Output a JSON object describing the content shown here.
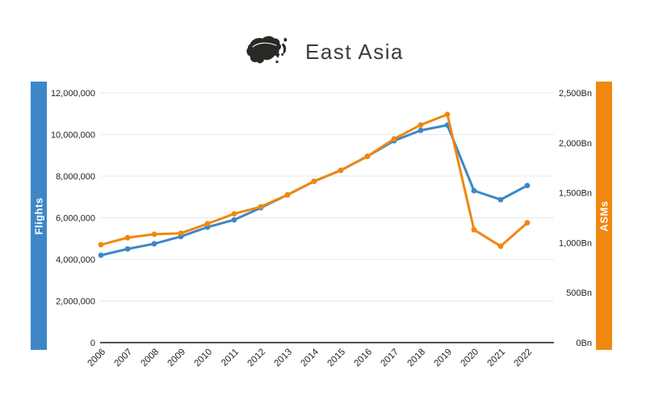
{
  "title": {
    "text": "East Asia",
    "icon": "east-asia-map-icon",
    "color": "#3c3c3c"
  },
  "left_axis": {
    "label": "Flights",
    "color": "#3d87c9",
    "tick_labels": [
      "0",
      "2,000,000",
      "4,000,000",
      "6,000,000",
      "8,000,000",
      "10,000,000",
      "12,000,000"
    ],
    "tick_values": [
      0,
      2000000,
      4000000,
      6000000,
      8000000,
      10000000,
      12000000
    ],
    "max": 12000000
  },
  "right_axis": {
    "label": "ASMs",
    "color": "#f0870f",
    "tick_labels": [
      "0Bn",
      "500Bn",
      "1,000Bn",
      "1,500Bn",
      "2,000Bn",
      "2,500Bn"
    ],
    "tick_values": [
      0,
      500,
      1000,
      1500,
      2000,
      2500
    ],
    "max": 2500
  },
  "chart_data": {
    "type": "line",
    "title": "East Asia",
    "x": [
      "2006",
      "2007",
      "2008",
      "2009",
      "2010",
      "2011",
      "2012",
      "2013",
      "2014",
      "2015",
      "2016",
      "2017",
      "2018",
      "2019",
      "2020",
      "2021",
      "2022"
    ],
    "grid": true,
    "legend_position": "none",
    "ylim_left": [
      0,
      12000000
    ],
    "ylim_right": [
      0,
      2500
    ],
    "series": [
      {
        "name": "Flights",
        "axis": "left",
        "color": "#3d87c9",
        "values": [
          4200000,
          4500000,
          4750000,
          5100000,
          5550000,
          5900000,
          6480000,
          7100000,
          7750000,
          8280000,
          8950000,
          9700000,
          10200000,
          10450000,
          7300000,
          6870000,
          7550000
        ]
      },
      {
        "name": "ASMs (Bn)",
        "axis": "right",
        "color": "#f0870f",
        "values": [
          980,
          1050,
          1085,
          1095,
          1190,
          1290,
          1360,
          1480,
          1615,
          1725,
          1865,
          2040,
          2180,
          2285,
          1130,
          965,
          1200
        ]
      }
    ]
  }
}
